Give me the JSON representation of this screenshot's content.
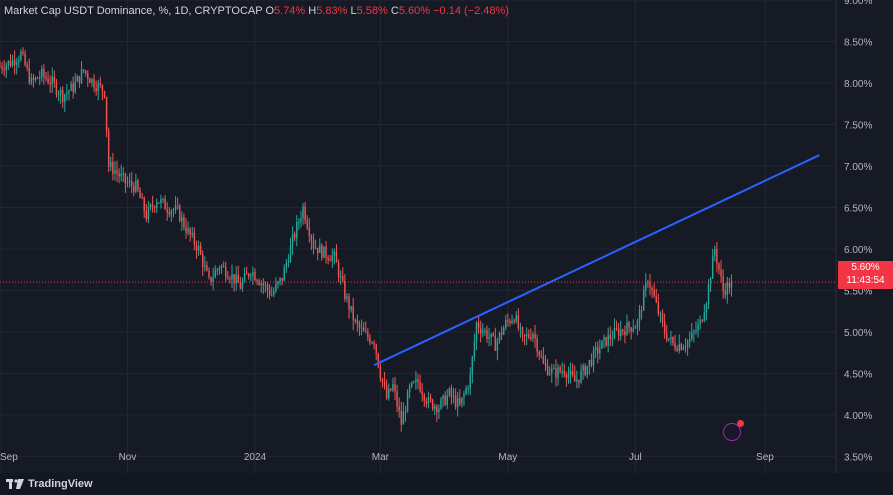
{
  "header": {
    "symbol_label": "Market Cap USDT Dominance, %, 1D, CRYPTOCAP",
    "open_label": "O",
    "open": "5.74%",
    "high_label": "H",
    "high": "5.83%",
    "low_label": "L",
    "low": "5.58%",
    "close_label": "C",
    "close": "5.60%",
    "change": "−0.14 (−2.48%)"
  },
  "price_tag": {
    "value": "5.60%",
    "countdown": "11:43:54"
  },
  "footer": {
    "brand": "TradingView"
  },
  "colors": {
    "background": "#161a25",
    "up": "#26a69a",
    "down": "#ef5350",
    "trendline": "#2962ff",
    "price_line": "#f23645"
  },
  "chart_data": {
    "type": "candlestick",
    "title": "Market Cap USDT Dominance, %, 1D, CRYPTOCAP",
    "ylim": [
      3.3,
      9.0
    ],
    "y_ticks": [
      "9.00%",
      "8.50%",
      "8.00%",
      "7.50%",
      "7.00%",
      "6.50%",
      "6.00%",
      "5.50%",
      "5.00%",
      "4.50%",
      "4.00%",
      "3.50%"
    ],
    "y_tick_values": [
      9.0,
      8.5,
      8.0,
      7.5,
      7.0,
      6.5,
      6.0,
      5.5,
      5.0,
      4.5,
      4.0,
      3.5
    ],
    "x_ticks": [
      {
        "label": "Sep",
        "day": 0
      },
      {
        "label": "Nov",
        "day": 61
      },
      {
        "label": "2024",
        "day": 122
      },
      {
        "label": "Mar",
        "day": 182
      },
      {
        "label": "May",
        "day": 243
      },
      {
        "label": "Jul",
        "day": 304
      },
      {
        "label": "Sep",
        "day": 366
      }
    ],
    "x_range_days": [
      0,
      400
    ],
    "last_price": 5.6,
    "trendline": {
      "start": {
        "day": 179,
        "value": 4.6
      },
      "end": {
        "day": 392,
        "value": 7.13
      }
    },
    "anchors": [
      [
        0,
        8.2
      ],
      [
        5,
        8.25
      ],
      [
        10,
        8.35
      ],
      [
        15,
        8.0
      ],
      [
        20,
        8.1
      ],
      [
        25,
        8.0
      ],
      [
        30,
        7.85
      ],
      [
        35,
        7.95
      ],
      [
        40,
        8.15
      ],
      [
        45,
        8.0
      ],
      [
        50,
        7.9
      ],
      [
        52,
        7.0
      ],
      [
        55,
        6.95
      ],
      [
        60,
        6.8
      ],
      [
        65,
        6.75
      ],
      [
        70,
        6.4
      ],
      [
        75,
        6.6
      ],
      [
        80,
        6.5
      ],
      [
        85,
        6.45
      ],
      [
        90,
        6.2
      ],
      [
        95,
        6.0
      ],
      [
        100,
        5.6
      ],
      [
        105,
        5.8
      ],
      [
        110,
        5.7
      ],
      [
        115,
        5.55
      ],
      [
        120,
        5.75
      ],
      [
        125,
        5.6
      ],
      [
        130,
        5.45
      ],
      [
        135,
        5.65
      ],
      [
        140,
        6.1
      ],
      [
        145,
        6.5
      ],
      [
        150,
        6.05
      ],
      [
        155,
        5.95
      ],
      [
        160,
        5.9
      ],
      [
        165,
        5.45
      ],
      [
        170,
        5.1
      ],
      [
        175,
        4.95
      ],
      [
        179,
        4.9
      ],
      [
        182,
        4.5
      ],
      [
        185,
        4.2
      ],
      [
        188,
        4.35
      ],
      [
        192,
        3.9
      ],
      [
        196,
        4.3
      ],
      [
        200,
        4.4
      ],
      [
        205,
        4.15
      ],
      [
        210,
        4.1
      ],
      [
        215,
        4.25
      ],
      [
        220,
        4.1
      ],
      [
        225,
        4.45
      ],
      [
        228,
        5.1
      ],
      [
        232,
        5.0
      ],
      [
        237,
        4.85
      ],
      [
        242,
        5.1
      ],
      [
        246,
        5.2
      ],
      [
        250,
        4.9
      ],
      [
        255,
        5.0
      ],
      [
        260,
        4.6
      ],
      [
        265,
        4.5
      ],
      [
        270,
        4.55
      ],
      [
        275,
        4.4
      ],
      [
        280,
        4.55
      ],
      [
        285,
        4.75
      ],
      [
        290,
        4.9
      ],
      [
        295,
        5.0
      ],
      [
        300,
        5.05
      ],
      [
        305,
        5.1
      ],
      [
        310,
        5.65
      ],
      [
        313,
        5.4
      ],
      [
        318,
        5.0
      ],
      [
        322,
        4.85
      ],
      [
        326,
        4.85
      ],
      [
        330,
        4.9
      ],
      [
        335,
        5.1
      ],
      [
        338,
        5.4
      ],
      [
        342,
        6.0
      ],
      [
        346,
        5.5
      ],
      [
        350,
        5.6
      ]
    ]
  }
}
